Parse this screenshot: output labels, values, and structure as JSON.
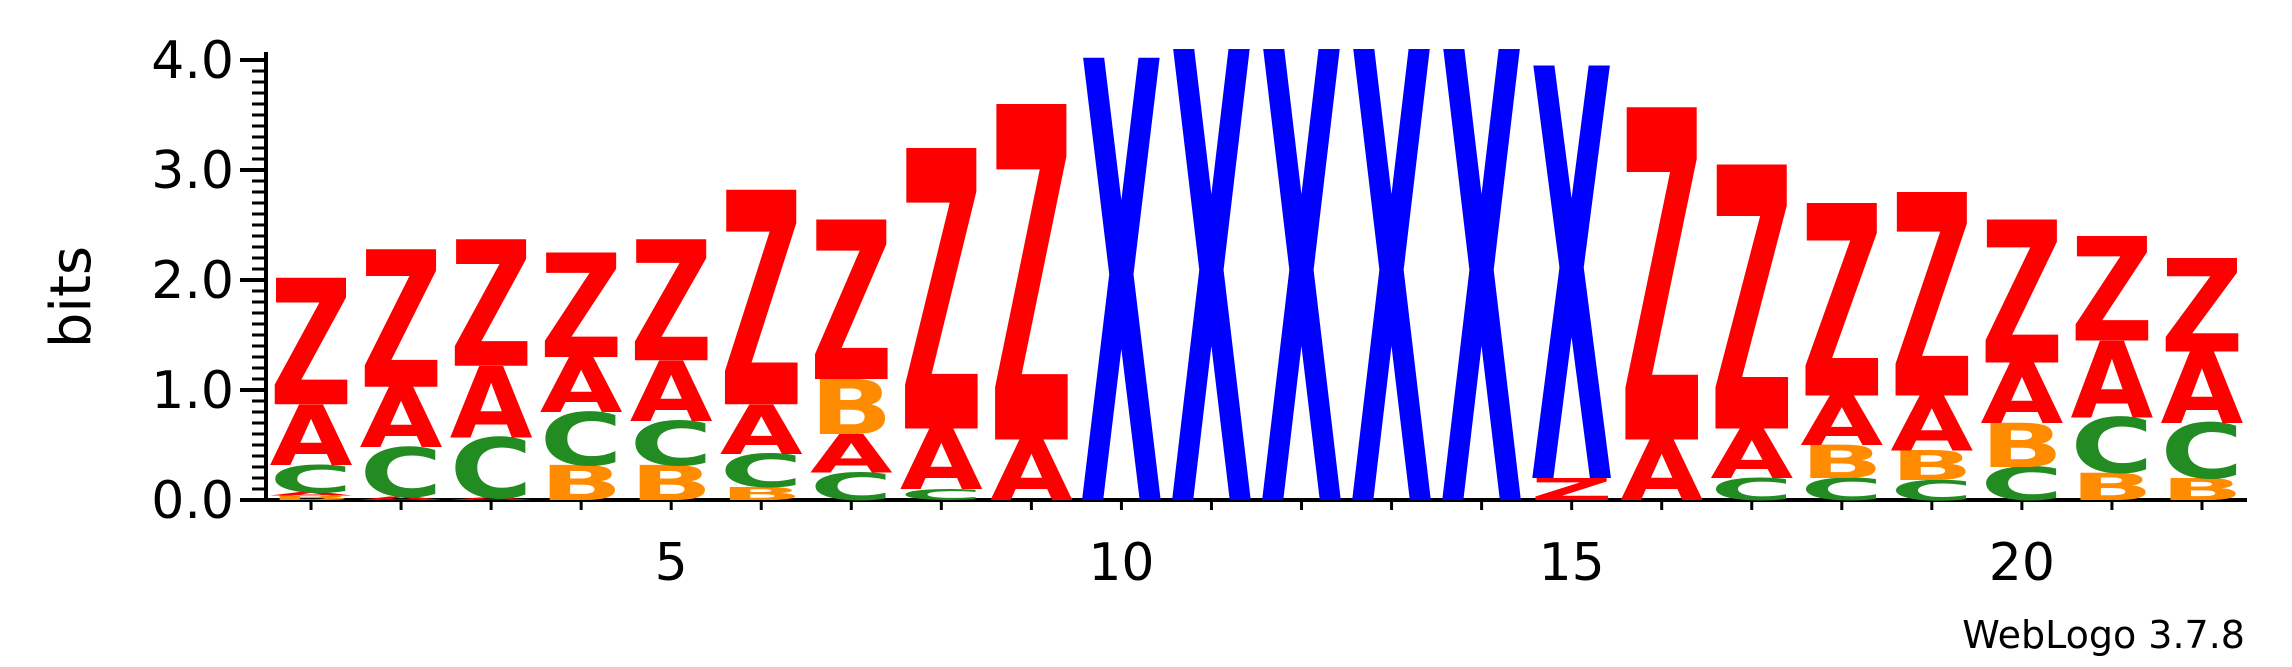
{
  "chart_data": {
    "type": "sequence-logo",
    "ylabel": "bits",
    "ylim": [
      0,
      4.0
    ],
    "yticks": [
      "0.0",
      "1.0",
      "2.0",
      "3.0",
      "4.0"
    ],
    "xticks": [
      5,
      10,
      15,
      20
    ],
    "positions": 22,
    "footer": "WebLogo 3.7.8",
    "colors": {
      "Z": "#ff0000",
      "A": "#ff0000",
      "X": "#0000ff",
      "B": "#ff8c00",
      "C": "#228b22"
    },
    "stacks": [
      {
        "pos": 1,
        "letters": [
          [
            "B",
            0.04
          ],
          [
            "A",
            0.03
          ],
          [
            "C",
            0.25
          ],
          [
            "A",
            0.55
          ],
          [
            "Z",
            1.15
          ]
        ]
      },
      {
        "pos": 2,
        "letters": [
          [
            "A",
            0.03
          ],
          [
            "C",
            0.45
          ],
          [
            "A",
            0.55
          ],
          [
            "Z",
            1.25
          ]
        ]
      },
      {
        "pos": 3,
        "letters": [
          [
            "A",
            0.02
          ],
          [
            "C",
            0.55
          ],
          [
            "A",
            0.65
          ],
          [
            "Z",
            1.15
          ]
        ]
      },
      {
        "pos": 4,
        "letters": [
          [
            "B",
            0.32
          ],
          [
            "C",
            0.48
          ],
          [
            "A",
            0.5
          ],
          [
            "Z",
            0.95
          ]
        ]
      },
      {
        "pos": 5,
        "letters": [
          [
            "B",
            0.32
          ],
          [
            "C",
            0.4
          ],
          [
            "A",
            0.55
          ],
          [
            "Z",
            1.1
          ]
        ]
      },
      {
        "pos": 6,
        "letters": [
          [
            "B",
            0.12
          ],
          [
            "C",
            0.3
          ],
          [
            "A",
            0.45
          ],
          [
            "Z",
            1.95
          ]
        ]
      },
      {
        "pos": 7,
        "letters": [
          [
            "C",
            0.25
          ],
          [
            "A",
            0.35
          ],
          [
            "B",
            0.5
          ],
          [
            "Z",
            1.45
          ]
        ]
      },
      {
        "pos": 8,
        "letters": [
          [
            "C",
            0.1
          ],
          [
            "A",
            0.55
          ],
          [
            "Z",
            2.55
          ]
        ]
      },
      {
        "pos": 9,
        "letters": [
          [
            "A",
            0.55
          ],
          [
            "Z",
            3.05
          ]
        ]
      },
      {
        "pos": 10,
        "letters": [
          [
            "X",
            4.02
          ]
        ]
      },
      {
        "pos": 11,
        "letters": [
          [
            "X",
            4.1
          ]
        ]
      },
      {
        "pos": 12,
        "letters": [
          [
            "X",
            4.1
          ]
        ]
      },
      {
        "pos": 13,
        "letters": [
          [
            "X",
            4.1
          ]
        ]
      },
      {
        "pos": 14,
        "letters": [
          [
            "X",
            4.1
          ]
        ]
      },
      {
        "pos": 15,
        "letters": [
          [
            "Z",
            0.2
          ],
          [
            "X",
            3.75
          ]
        ]
      },
      {
        "pos": 16,
        "letters": [
          [
            "A",
            0.55
          ],
          [
            "Z",
            3.02
          ]
        ]
      },
      {
        "pos": 17,
        "letters": [
          [
            "C",
            0.2
          ],
          [
            "A",
            0.45
          ],
          [
            "Z",
            2.4
          ]
        ]
      },
      {
        "pos": 18,
        "letters": [
          [
            "C",
            0.2
          ],
          [
            "B",
            0.3
          ],
          [
            "A",
            0.45
          ],
          [
            "Z",
            1.75
          ]
        ]
      },
      {
        "pos": 19,
        "letters": [
          [
            "C",
            0.18
          ],
          [
            "B",
            0.27
          ],
          [
            "A",
            0.5
          ],
          [
            "Z",
            1.85
          ]
        ]
      },
      {
        "pos": 20,
        "letters": [
          [
            "C",
            0.3
          ],
          [
            "B",
            0.4
          ],
          [
            "A",
            0.55
          ],
          [
            "Z",
            1.3
          ]
        ]
      },
      {
        "pos": 21,
        "letters": [
          [
            "B",
            0.25
          ],
          [
            "C",
            0.5
          ],
          [
            "A",
            0.7
          ],
          [
            "Z",
            0.95
          ]
        ]
      },
      {
        "pos": 22,
        "letters": [
          [
            "B",
            0.2
          ],
          [
            "C",
            0.5
          ],
          [
            "A",
            0.65
          ],
          [
            "Z",
            0.85
          ]
        ]
      }
    ]
  }
}
